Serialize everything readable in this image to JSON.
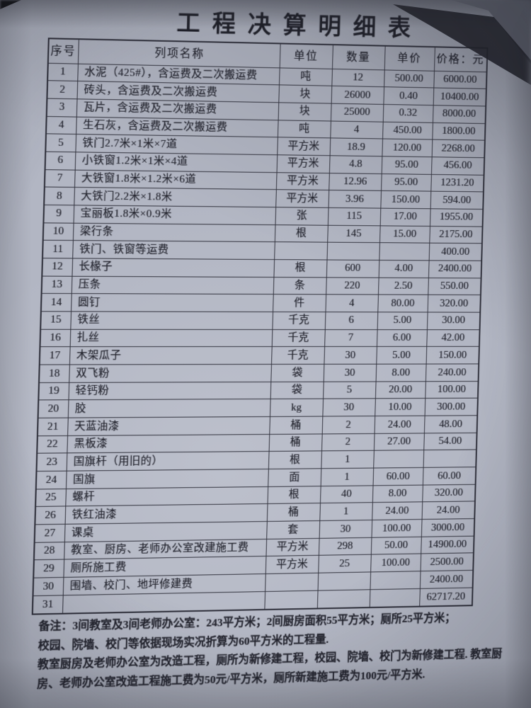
{
  "document": {
    "title": "工程决算明细表"
  },
  "table": {
    "columns": [
      "序号",
      "列项名称",
      "单位",
      "数量",
      "单价",
      "价格：元"
    ],
    "rows": [
      [
        "1",
        "水泥（425#），含运费及二次搬运费",
        "吨",
        "12",
        "500.00",
        "6000.00"
      ],
      [
        "2",
        "砖头，含运费及二次搬运费",
        "块",
        "26000",
        "0.40",
        "10400.00"
      ],
      [
        "3",
        "瓦片，含运费及二次搬运费",
        "块",
        "25000",
        "0.32",
        "8000.00"
      ],
      [
        "4",
        "生石灰，含运费及二次搬运费",
        "吨",
        "4",
        "450.00",
        "1800.00"
      ],
      [
        "5",
        "铁门2.7米×1米×7道",
        "平方米",
        "18.9",
        "120.00",
        "2268.00"
      ],
      [
        "6",
        "小铁窗1.2米×1米×4道",
        "平方米",
        "4.8",
        "95.00",
        "456.00"
      ],
      [
        "7",
        "大铁窗1.8米×1.2米×6道",
        "平方米",
        "12.96",
        "95.00",
        "1231.20"
      ],
      [
        "8",
        "大铁门2.2米×1.8米",
        "平方米",
        "3.96",
        "150.00",
        "594.00"
      ],
      [
        "9",
        "宝丽板1.8米×0.9米",
        "张",
        "115",
        "17.00",
        "1955.00"
      ],
      [
        "10",
        "梁行条",
        "根",
        "145",
        "15.00",
        "2175.00"
      ],
      [
        "11",
        "铁门、铁窗等运费",
        "",
        "",
        "",
        "400.00"
      ],
      [
        "12",
        "长椽子",
        "根",
        "600",
        "4.00",
        "2400.00"
      ],
      [
        "13",
        "压条",
        "条",
        "220",
        "2.50",
        "550.00"
      ],
      [
        "14",
        "圆钉",
        "件",
        "4",
        "80.00",
        "320.00"
      ],
      [
        "15",
        "铁丝",
        "千克",
        "6",
        "5.00",
        "30.00"
      ],
      [
        "16",
        "扎丝",
        "千克",
        "7",
        "6.00",
        "42.00"
      ],
      [
        "17",
        "木架瓜子",
        "千克",
        "30",
        "5.00",
        "150.00"
      ],
      [
        "18",
        "双飞粉",
        "袋",
        "30",
        "8.00",
        "240.00"
      ],
      [
        "19",
        "轻钙粉",
        "袋",
        "5",
        "20.00",
        "100.00"
      ],
      [
        "20",
        "胶",
        "kg",
        "30",
        "10.00",
        "300.00"
      ],
      [
        "21",
        "天蓝油漆",
        "桶",
        "2",
        "24.00",
        "48.00"
      ],
      [
        "22",
        "黑板漆",
        "桶",
        "2",
        "27.00",
        "54.00"
      ],
      [
        "23",
        "国旗杆（用旧的）",
        "根",
        "1",
        "",
        ""
      ],
      [
        "24",
        "国旗",
        "面",
        "1",
        "60.00",
        "60.00"
      ],
      [
        "25",
        "螺杆",
        "根",
        "40",
        "8.00",
        "320.00"
      ],
      [
        "26",
        "铁红油漆",
        "桶",
        "1",
        "24.00",
        "24.00"
      ],
      [
        "27",
        "课桌",
        "套",
        "30",
        "100.00",
        "3000.00"
      ],
      [
        "28",
        "教室、厨房、老师办公室改建施工费",
        "平方米",
        "298",
        "50.00",
        "14900.00"
      ],
      [
        "29",
        "厕所施工费",
        "平方米",
        "25",
        "100.00",
        "2500.00"
      ],
      [
        "30",
        "围墙、校门、地坪修建费",
        "",
        "",
        "",
        "2400.00"
      ],
      [
        "31",
        "",
        "",
        "",
        "",
        "62717.20"
      ]
    ]
  },
  "notes": {
    "lines": [
      "备注：3间教室及3间老师办公室：243平方米；2间厨房面积55平方米；厕所25平方米；",
      "校园、院墙、校门等依据现场实况折算为60平方米的工程量.",
      "教室厨房及老师办公室为改造工程，厕所为新修建工程，校园、院墙、校门为新修建工程. 教室厨",
      "房、老师办公室改造工程施工费为50元/平方米，厕所新建施工费为100元/平方米."
    ]
  },
  "colors": {
    "paper": "#b2b6c3",
    "ink": "#24252f",
    "shadow": "#23242c"
  }
}
